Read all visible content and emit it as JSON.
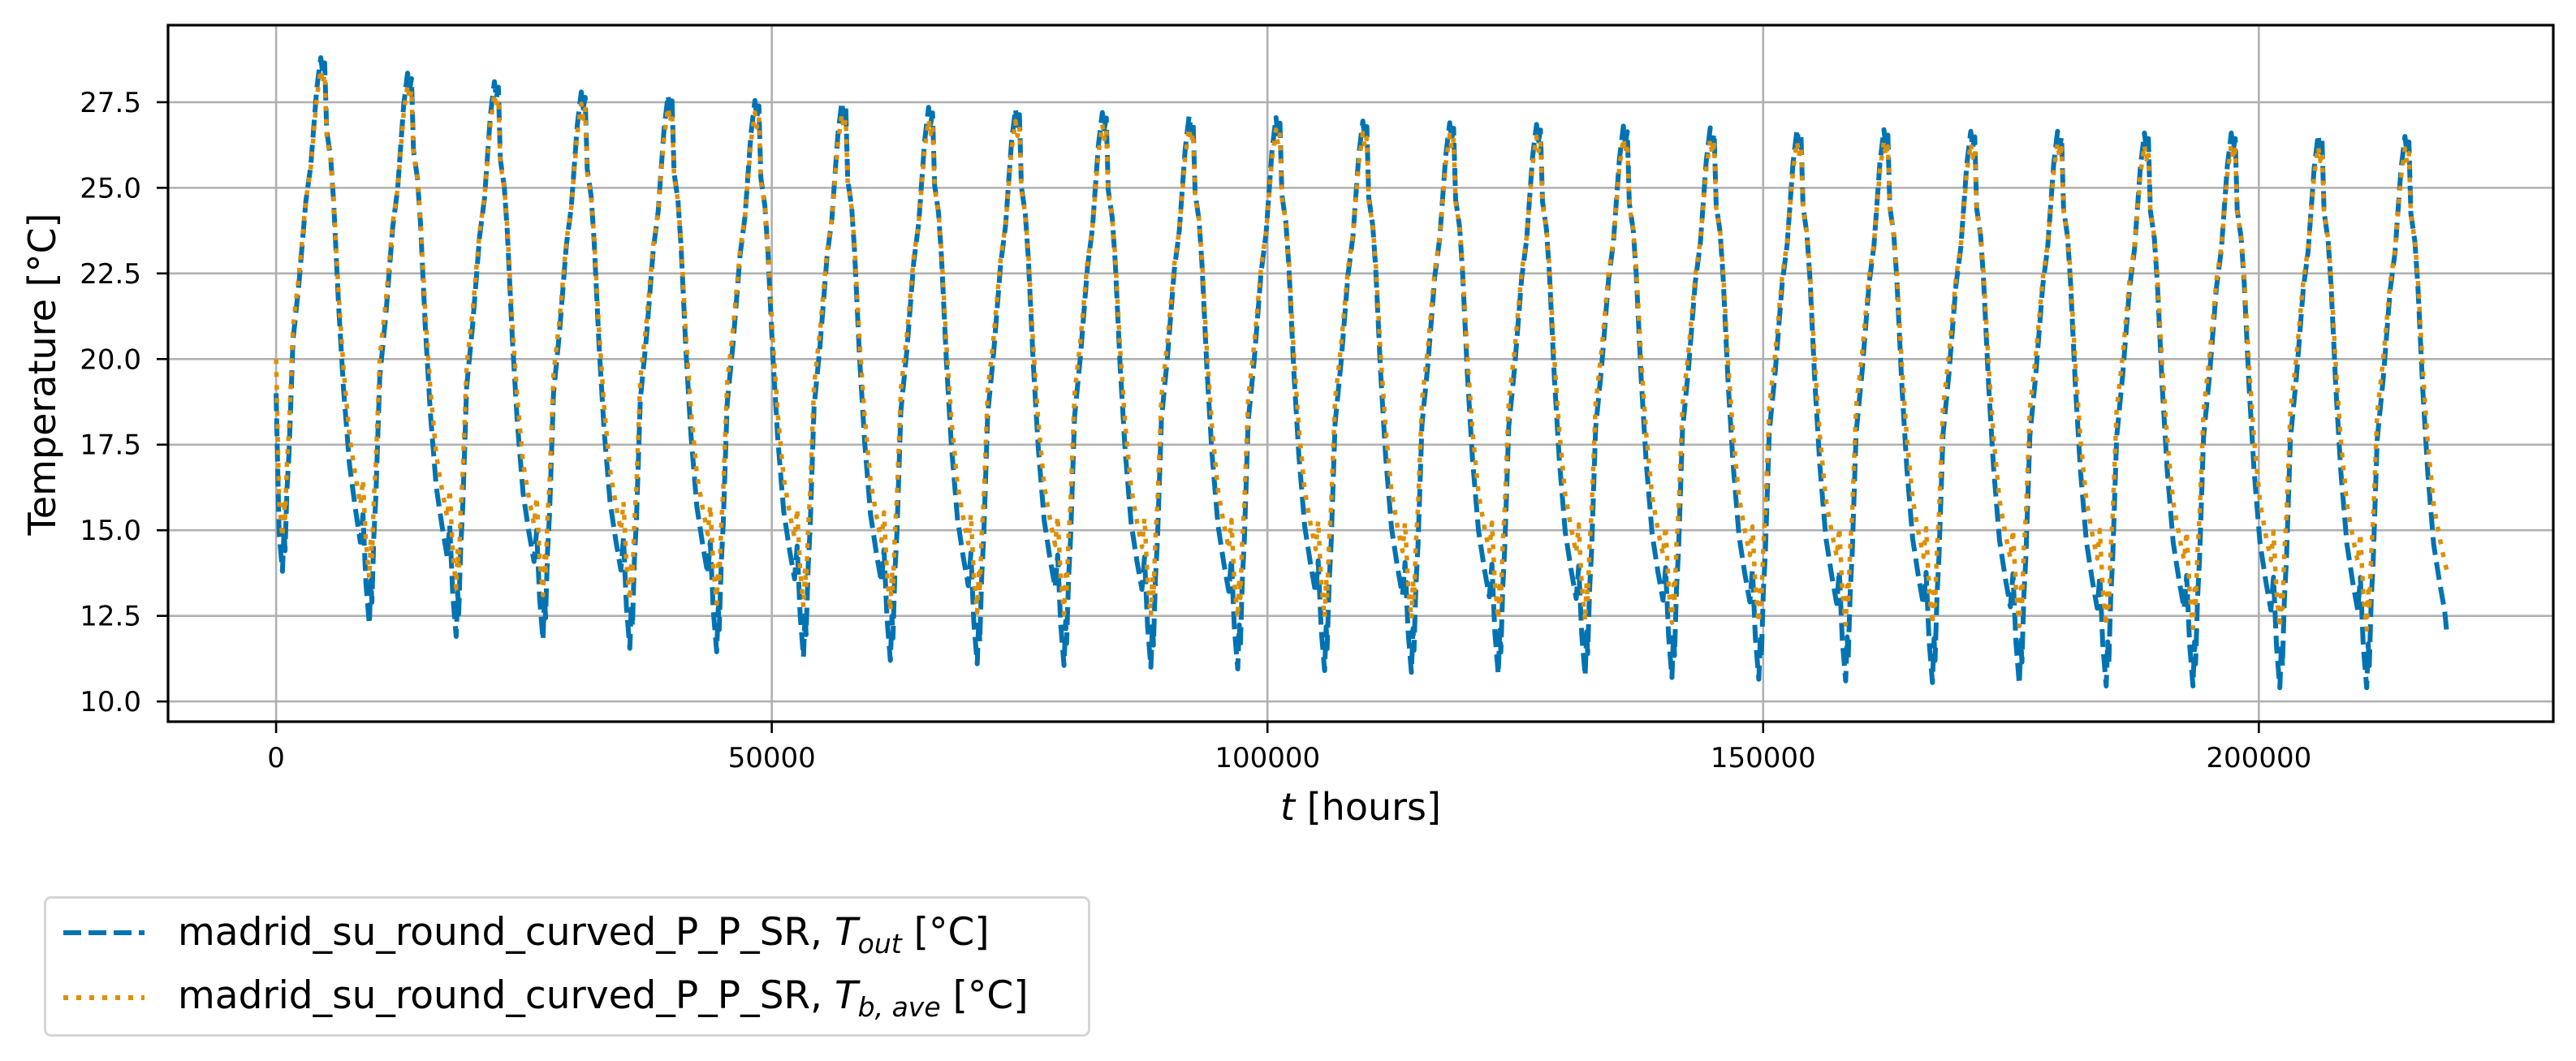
{
  "figure": {
    "xlabel_var": "t",
    "xlabel_unit": " [hours]",
    "ylabel": "Temperature [°C]"
  },
  "legend": {
    "items": [
      {
        "prefix": "madrid_su_round_curved_P_P_SR, ",
        "symbol": "T",
        "subscript": "out",
        "suffix": " [°C]",
        "style": "dashed",
        "color": "#0173B2"
      },
      {
        "prefix": "madrid_su_round_curved_P_P_SR, ",
        "symbol": "T",
        "subscript": "b, ave",
        "suffix": " [°C]",
        "style": "dotted",
        "color": "#DE8F05"
      }
    ]
  },
  "chart_data": {
    "type": "line",
    "title": "",
    "xlabel": "t [hours]",
    "ylabel": "Temperature [°C]",
    "xlim": [
      -10900,
      229700
    ],
    "ylim": [
      9.41,
      29.75
    ],
    "grid": true,
    "legend_position": "below-left, outside axes",
    "xticks": [
      0,
      50000,
      100000,
      150000,
      200000
    ],
    "xtick_labels": [
      "0",
      "50000",
      "100000",
      "150000",
      "200000"
    ],
    "yticks": [
      10.0,
      12.5,
      15.0,
      17.5,
      20.0,
      22.5,
      25.0,
      27.5
    ],
    "ytick_labels": [
      "10.0",
      "12.5",
      "15.0",
      "17.5",
      "20.0",
      "22.5",
      "25.0",
      "27.5"
    ],
    "period_hours": 8760,
    "n_years": 25,
    "t_end": 219000,
    "annual_shape": {
      "description": "normalized level within each year (0 = annual minimum, 1 = annual maximum), by hour offset into the year",
      "hours": [
        0,
        300,
        640,
        800,
        900,
        1100,
        1300,
        1700,
        2300,
        3000,
        3500,
        4100,
        4500,
        4700,
        4900,
        5100,
        5500,
        5800,
        6300,
        6800,
        7400,
        8000,
        8500
      ],
      "levels": [
        0.2,
        0.075,
        0.0,
        0.08,
        0.04,
        0.16,
        0.23,
        0.45,
        0.56,
        0.72,
        0.79,
        0.94,
        1.0,
        0.97,
        0.99,
        0.86,
        0.81,
        0.73,
        0.54,
        0.39,
        0.26,
        0.19,
        0.14
      ]
    },
    "series": [
      {
        "name": "madrid_su_round_curved_P_P_SR, T_out [°C]",
        "color": "#0173B2",
        "linestyle": "dashed",
        "start_value": 19.0,
        "annual_max": [
          28.8,
          28.35,
          28.1,
          27.8,
          27.7,
          27.55,
          27.5,
          27.35,
          27.3,
          27.2,
          27.1,
          27.05,
          26.95,
          26.9,
          26.85,
          26.8,
          26.75,
          26.7,
          26.7,
          26.65,
          26.65,
          26.6,
          26.6,
          26.55,
          26.5
        ],
        "annual_min": [
          13.8,
          12.25,
          11.9,
          11.8,
          11.55,
          11.45,
          11.3,
          11.2,
          11.1,
          11.05,
          11.0,
          10.95,
          10.9,
          10.85,
          10.8,
          10.75,
          10.7,
          10.65,
          10.6,
          10.55,
          10.5,
          10.45,
          10.45,
          10.4,
          10.4
        ],
        "end_value": 11.9
      },
      {
        "name": "madrid_su_round_curved_P_P_SR, T_b,ave [°C]",
        "color": "#DE8F05",
        "linestyle": "dotted",
        "start_value": 20.0,
        "annual_max": [
          28.45,
          28.0,
          27.75,
          27.45,
          27.35,
          27.2,
          27.15,
          27.0,
          26.95,
          26.85,
          26.75,
          26.7,
          26.6,
          26.55,
          26.5,
          26.45,
          26.4,
          26.35,
          26.35,
          26.3,
          26.3,
          26.25,
          26.25,
          26.2,
          26.15
        ],
        "annual_min": [
          14.8,
          13.6,
          13.3,
          13.1,
          12.95,
          12.85,
          12.75,
          12.65,
          12.6,
          12.55,
          12.5,
          12.45,
          12.45,
          12.4,
          12.4,
          12.35,
          12.3,
          12.3,
          12.25,
          12.25,
          12.2,
          12.2,
          12.15,
          12.15,
          12.1
        ],
        "end_value": 13.8
      }
    ]
  }
}
